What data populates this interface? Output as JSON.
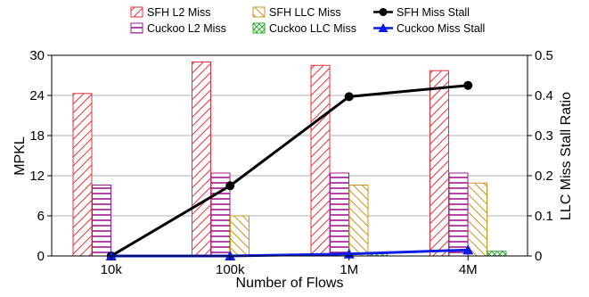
{
  "chart_data": {
    "type": "bar",
    "xlabel": "Number of Flows",
    "ylabel_left": "MPKL",
    "ylabel_right": "LLC Miss Stall Ratio",
    "categories": [
      "10k",
      "100k",
      "1M",
      "4M"
    ],
    "ylim_left": [
      0,
      30
    ],
    "yticks_left": [
      0,
      6,
      12,
      18,
      24,
      30
    ],
    "ylim_right": [
      0,
      0.5
    ],
    "yticks_right": [
      0,
      0.1,
      0.2,
      0.3,
      0.4,
      0.5
    ],
    "grid": "horizontal",
    "legend_position": "top",
    "bar_series": [
      {
        "name": "SFH L2 Miss",
        "values": [
          24.3,
          29.0,
          28.5,
          27.7
        ],
        "color": "#e8303a",
        "pattern": "diagonal"
      },
      {
        "name": "Cuckoo L2 Miss",
        "values": [
          10.6,
          12.4,
          12.4,
          12.4
        ],
        "color": "#a0188f",
        "pattern": "horizontal"
      },
      {
        "name": "SFH LLC Miss",
        "values": [
          0.0,
          6.0,
          10.6,
          10.9
        ],
        "color": "#c8951e",
        "pattern": "diagonal"
      },
      {
        "name": "Cuckoo LLC Miss",
        "values": [
          0.0,
          0.1,
          0.4,
          0.7
        ],
        "color": "#2ea82e",
        "pattern": "cross"
      }
    ],
    "line_series": [
      {
        "name": "SFH Miss Stall",
        "values": [
          0.0,
          0.175,
          0.397,
          0.425
        ],
        "color": "#000000",
        "marker": "circle"
      },
      {
        "name": "Cuckoo Miss Stall",
        "values": [
          0.0,
          0.0,
          0.005,
          0.015
        ],
        "color": "#0a1ee6",
        "marker": "triangle"
      }
    ]
  }
}
